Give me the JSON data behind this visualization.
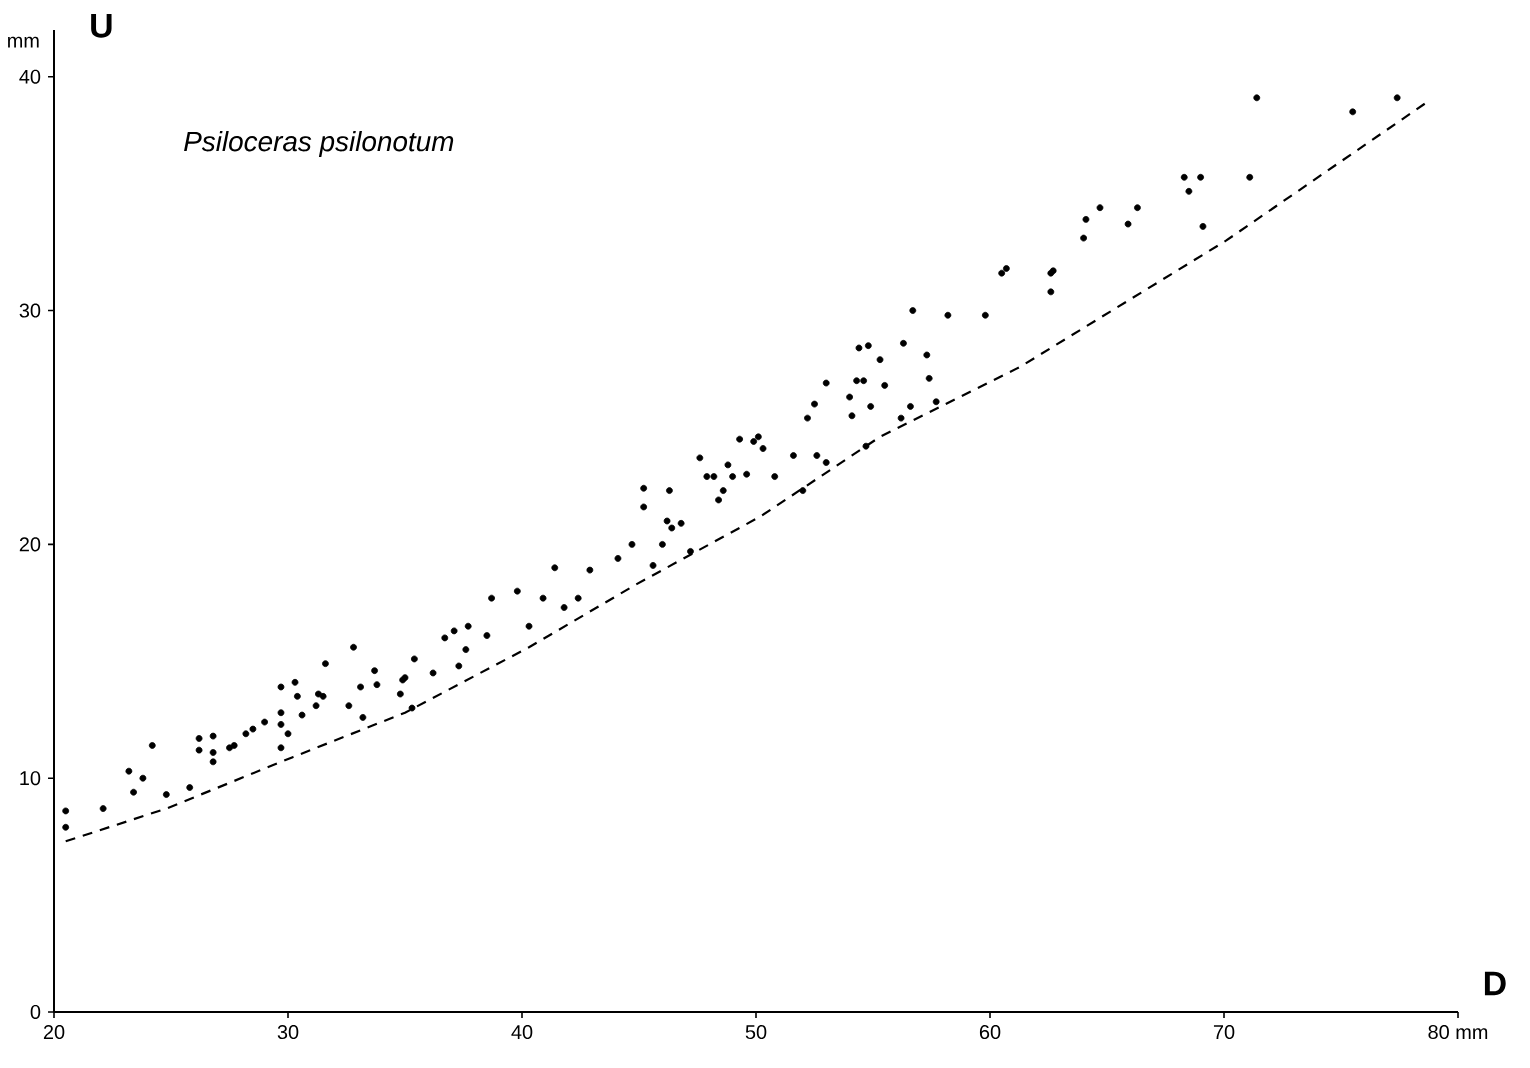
{
  "chart_data": {
    "type": "scatter",
    "title": "Psiloceras psilonotum",
    "xlabel": "D",
    "ylabel": "U",
    "annotations": [
      "mm"
    ],
    "xlim": [
      20,
      80
    ],
    "ylim": [
      0,
      42
    ],
    "xticks": [
      20,
      30,
      40,
      50,
      60,
      70,
      {
        "value": 80,
        "label": "80 mm"
      }
    ],
    "yticks": [
      0,
      10,
      20,
      30,
      40
    ],
    "grid": false,
    "series": [
      {
        "marker": "circle",
        "color": "#000000",
        "x": [
          20.5,
          20.5,
          22.1,
          23.2,
          23.4,
          23.8,
          24.2,
          24.8,
          25.8,
          26.2,
          26.2,
          26.8,
          26.8,
          26.8,
          27.5,
          27.7,
          28.2,
          28.5,
          29.0,
          29.7,
          30.3,
          29.7,
          30.4,
          29.7,
          30.0,
          29.7,
          30.6,
          31.3,
          31.5,
          31.2,
          31.6,
          32.8,
          32.6,
          33.1,
          33.2,
          33.7,
          33.8,
          34.9,
          35.0,
          34.8,
          35.4,
          35.3,
          36.2,
          36.7,
          37.1,
          37.3,
          37.7,
          37.6,
          38.5,
          38.7,
          39.8,
          40.3,
          40.9,
          41.4,
          41.8,
          42.4,
          42.9,
          44.1,
          44.7,
          45.2,
          45.2,
          45.6,
          46.0,
          46.2,
          46.3,
          46.4,
          46.8,
          47.2,
          47.6,
          47.9,
          48.2,
          48.4,
          48.6,
          48.8,
          49.0,
          49.3,
          49.6,
          49.9,
          50.1,
          50.3,
          50.8,
          51.6,
          52.0,
          52.6,
          53.0,
          52.2,
          52.5,
          53.0,
          54.0,
          54.1,
          54.4,
          54.8,
          54.3,
          54.6,
          54.7,
          54.9,
          55.3,
          55.5,
          56.2,
          56.3,
          56.6,
          57.3,
          57.4,
          57.7,
          56.7,
          58.2,
          59.8,
          60.5,
          60.7,
          62.6,
          62.7,
          62.6,
          64.0,
          64.1,
          64.7,
          65.9,
          66.3,
          68.3,
          69.0,
          68.5,
          69.1,
          71.1,
          71.4,
          75.5,
          77.4
        ],
        "values": [
          8.6,
          7.9,
          8.7,
          10.3,
          9.4,
          10.0,
          11.4,
          9.3,
          9.6,
          11.7,
          11.2,
          11.8,
          11.1,
          10.7,
          11.3,
          11.4,
          11.9,
          12.1,
          12.4,
          13.9,
          14.1,
          12.8,
          13.5,
          12.3,
          11.9,
          11.3,
          12.7,
          13.6,
          13.5,
          13.1,
          14.9,
          15.6,
          13.1,
          13.9,
          12.6,
          14.6,
          14.0,
          14.2,
          14.3,
          13.6,
          15.1,
          13.0,
          14.5,
          16.0,
          16.3,
          14.8,
          16.5,
          15.5,
          16.1,
          17.7,
          18.0,
          16.5,
          17.7,
          19.0,
          17.3,
          17.7,
          18.9,
          19.4,
          20.0,
          22.4,
          21.6,
          19.1,
          20.0,
          21.0,
          22.3,
          20.7,
          20.9,
          19.7,
          23.7,
          22.9,
          22.9,
          21.9,
          22.3,
          23.4,
          22.9,
          24.5,
          23.0,
          24.4,
          24.6,
          24.1,
          22.9,
          23.8,
          22.3,
          23.8,
          23.5,
          25.4,
          26.0,
          26.9,
          26.3,
          25.5,
          28.4,
          28.5,
          27.0,
          27.0,
          24.2,
          25.9,
          27.9,
          26.8,
          25.4,
          28.6,
          25.9,
          28.1,
          27.1,
          26.1,
          30.0,
          29.8,
          29.8,
          31.6,
          31.8,
          31.6,
          31.7,
          30.8,
          33.1,
          33.9,
          34.4,
          33.7,
          34.4,
          35.7,
          35.7,
          35.1,
          33.6,
          35.7,
          39.1,
          38.5,
          39.1
        ]
      },
      {
        "type": "line",
        "marker": "none",
        "color": "#000000",
        "line_style": "dashed",
        "x": [
          20.5,
          24.8,
          30.2,
          35.0,
          40.3,
          44.9,
          50.2,
          55.3,
          61.3,
          70.1,
          78.8
        ],
        "values": [
          7.3,
          8.7,
          10.9,
          12.8,
          15.6,
          18.3,
          21.2,
          24.6,
          27.6,
          33.0,
          39.0
        ]
      }
    ]
  }
}
